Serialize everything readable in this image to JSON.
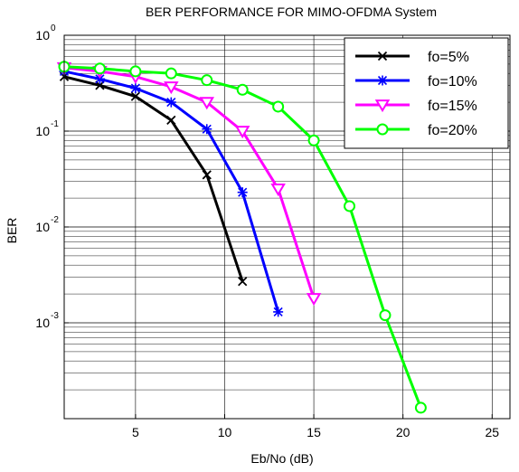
{
  "chart_data": {
    "type": "line",
    "title": "BER PERFORMANCE FOR MIMO-OFDMA System",
    "xlabel": "Eb/No (dB)",
    "ylabel": "BER",
    "xlim": [
      1,
      26
    ],
    "ylim": [
      0.0001,
      1
    ],
    "yscale": "log",
    "grid": true,
    "legend_position": "top-right",
    "x_ticks": [
      5,
      10,
      15,
      20,
      25
    ],
    "y_ticks": [
      {
        "value": 1,
        "base": "10",
        "exp": "0"
      },
      {
        "value": 0.1,
        "base": "10",
        "exp": "-1"
      },
      {
        "value": 0.01,
        "base": "10",
        "exp": "-2"
      },
      {
        "value": 0.001,
        "base": "10",
        "exp": "-3"
      }
    ],
    "series": [
      {
        "name": "fo=5%",
        "color": "#000000",
        "marker": "x",
        "x": [
          1,
          3,
          5,
          7,
          9,
          11
        ],
        "y": [
          0.37,
          0.3,
          0.23,
          0.13,
          0.035,
          0.0027
        ]
      },
      {
        "name": "fo=10%",
        "color": "#0000ff",
        "marker": "star",
        "x": [
          1,
          3,
          5,
          7,
          9,
          11,
          13
        ],
        "y": [
          0.42,
          0.35,
          0.28,
          0.2,
          0.105,
          0.023,
          0.0013
        ]
      },
      {
        "name": "fo=15%",
        "color": "#ff00ff",
        "marker": "triangle-down",
        "x": [
          1,
          3,
          5,
          7,
          9,
          11,
          13,
          15
        ],
        "y": [
          0.46,
          0.42,
          0.37,
          0.29,
          0.2,
          0.1,
          0.025,
          0.0018
        ]
      },
      {
        "name": "fo=20%",
        "color": "#00ff00",
        "marker": "circle",
        "x": [
          1,
          3,
          5,
          7,
          9,
          11,
          13,
          15,
          17,
          19,
          21
        ],
        "y": [
          0.47,
          0.45,
          0.42,
          0.4,
          0.34,
          0.27,
          0.18,
          0.08,
          0.0165,
          0.0012,
          0.00013
        ]
      }
    ]
  }
}
